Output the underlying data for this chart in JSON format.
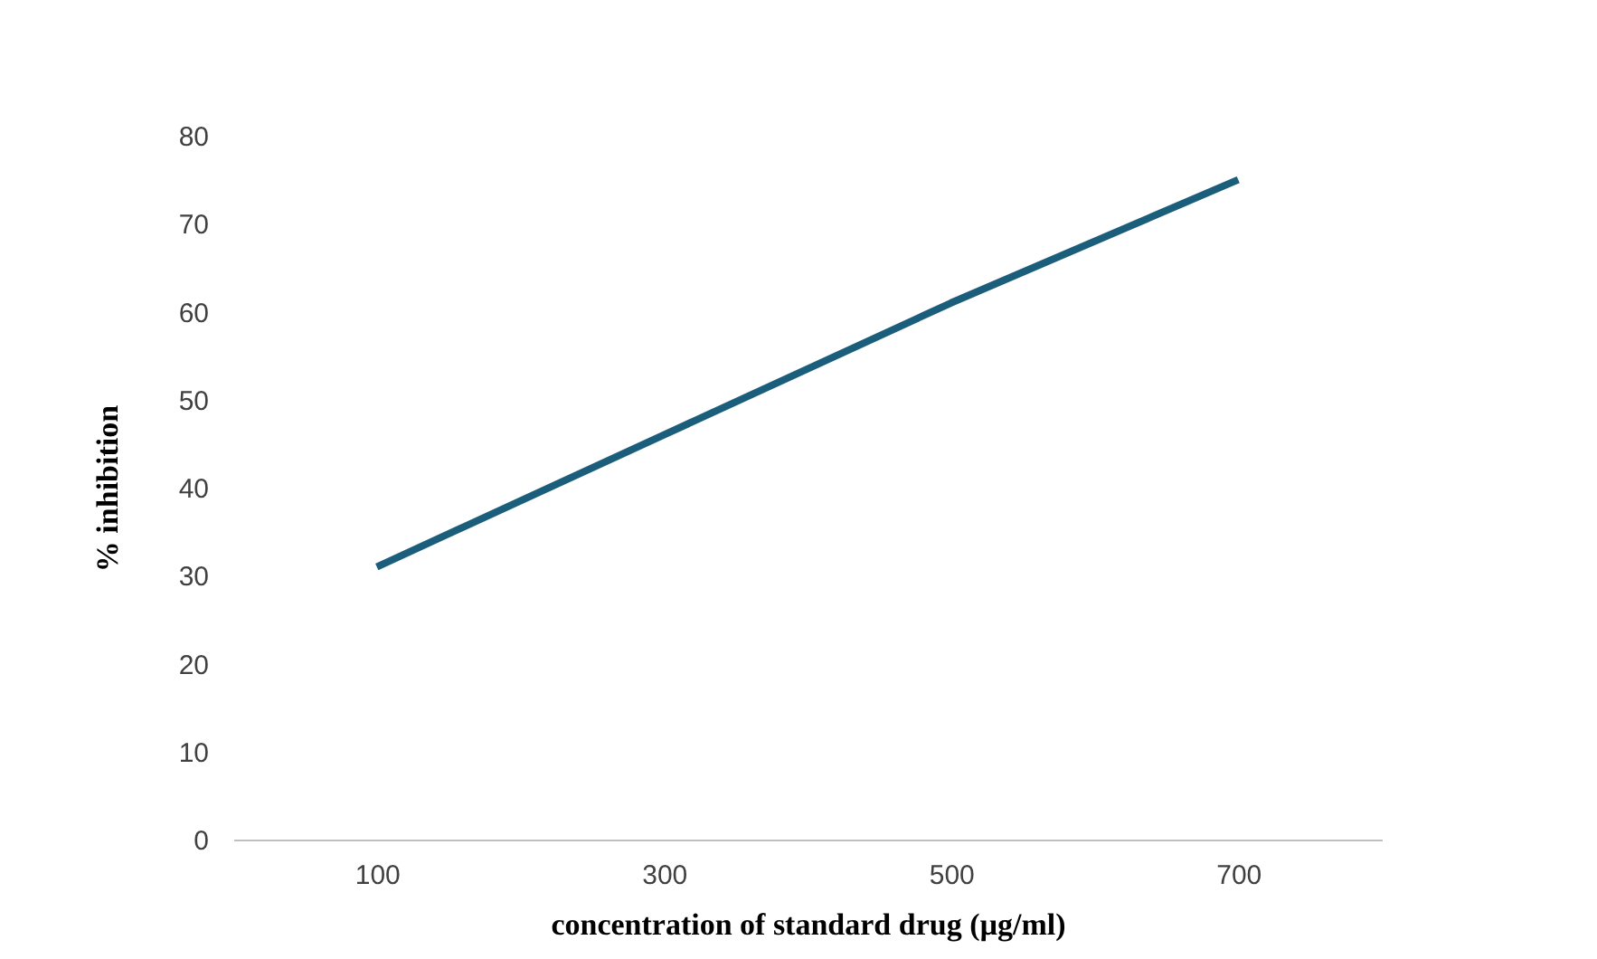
{
  "chart_data": {
    "type": "line",
    "xlabel": "concentration  of standard  drug (µg/ml)",
    "ylabel": "% inhibition",
    "categories": [
      "100",
      "300",
      "500",
      "700"
    ],
    "series": [
      {
        "color": "#1b5e7b",
        "values": [
          31,
          46,
          61,
          75
        ]
      }
    ],
    "ylim": [
      0,
      80
    ],
    "yticks": [
      0,
      10,
      20,
      30,
      40,
      50,
      60,
      70,
      80
    ],
    "grid": false,
    "legend": false,
    "marker": "none",
    "line_style": "solid"
  }
}
